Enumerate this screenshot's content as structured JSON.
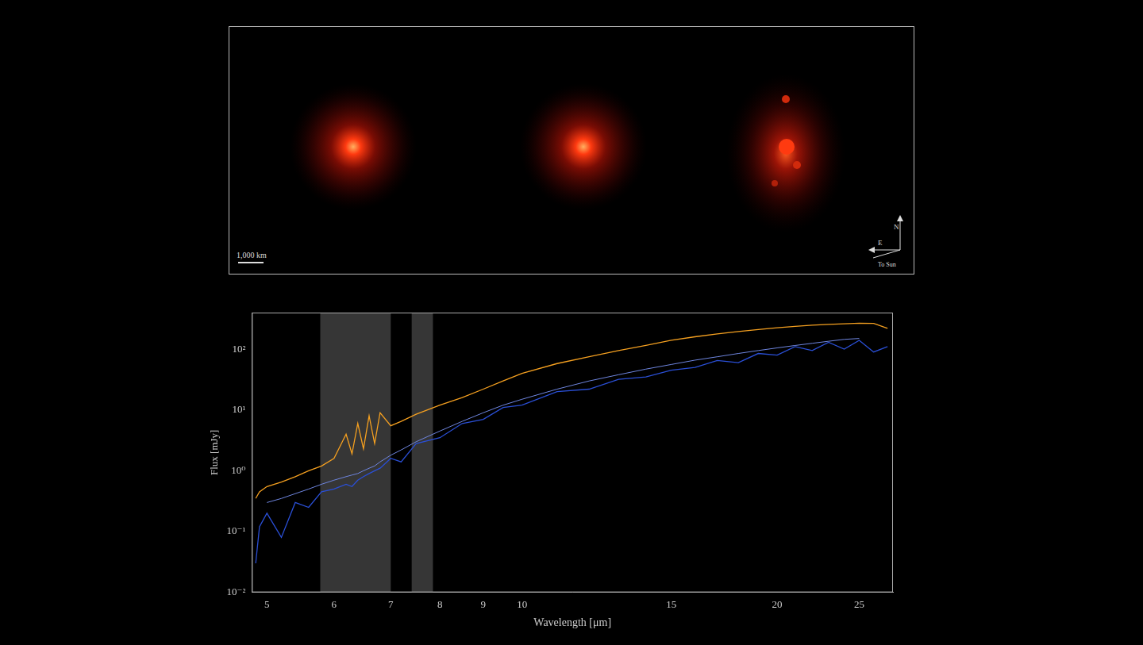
{
  "image_panel": {
    "scale_bar": "1,000 km",
    "compass": [
      "N",
      "E"
    ],
    "sun_label": "To Sun"
  },
  "chart_data": {
    "type": "line",
    "log": true,
    "grid": false,
    "tick_labels": true,
    "x_label": "Wavelength [μm]",
    "y_label": "Flux [mJy]",
    "xlim": [
      4.8,
      27.4
    ],
    "ylim": [
      0.01,
      400
    ],
    "xticks": [
      5,
      6,
      7,
      8,
      9,
      10,
      15,
      20,
      25
    ],
    "yticks": [
      {
        "value": 0.01,
        "label": "10⁻²"
      },
      {
        "value": 0.1,
        "label": "10⁻¹"
      },
      {
        "value": 1,
        "label": "10⁰"
      },
      {
        "value": 10,
        "label": "10¹"
      },
      {
        "value": 100,
        "label": "10²"
      }
    ],
    "shaded_bands": [
      [
        5.78,
        7.0
      ],
      [
        7.41,
        7.85
      ]
    ],
    "x": [
      4.85,
      4.9,
      5,
      5.2,
      5.4,
      5.6,
      5.8,
      6,
      6.2,
      6.3,
      6.4,
      6.5,
      6.6,
      6.7,
      6.8,
      7,
      7.2,
      7.5,
      8,
      8.5,
      9,
      9.5,
      10,
      11,
      12,
      13,
      14,
      15,
      16,
      17,
      18,
      19,
      20,
      21,
      22,
      23,
      24,
      25,
      26,
      27
    ],
    "series": [
      {
        "color": "#f5a020",
        "values": [
          0.35,
          0.45,
          0.55,
          0.65,
          0.8,
          1.0,
          1.2,
          1.6,
          4,
          1.9,
          6,
          2.3,
          8,
          2.8,
          9,
          5.5,
          6.5,
          8.5,
          12,
          16,
          22,
          30,
          40,
          58,
          75,
          95,
          115,
          140,
          160,
          178,
          195,
          210,
          225,
          238,
          248,
          256,
          262,
          268,
          265,
          220
        ]
      },
      {
        "color": "#2a4fd6",
        "values": [
          0.03,
          0.12,
          0.2,
          0.08,
          0.3,
          0.25,
          0.45,
          0.5,
          0.6,
          0.55,
          0.7,
          0.8,
          0.9,
          1.0,
          1.1,
          1.6,
          1.4,
          2.8,
          3.5,
          6,
          7,
          11,
          12,
          20,
          22,
          32,
          35,
          45,
          50,
          65,
          60,
          85,
          80,
          110,
          95,
          130,
          100,
          140,
          90,
          110
        ]
      },
      {
        "color": "#6f86e0",
        "values": [
          null,
          null,
          0.3,
          0.35,
          0.42,
          0.5,
          0.6,
          0.7,
          0.8,
          0.85,
          0.9,
          1.0,
          1.1,
          1.2,
          1.4,
          1.8,
          2.2,
          3,
          4.5,
          6.5,
          9,
          12,
          15,
          22,
          30,
          38,
          47,
          56,
          66,
          75,
          85,
          95,
          105,
          115,
          125,
          135,
          145,
          150,
          null,
          null
        ]
      }
    ]
  }
}
